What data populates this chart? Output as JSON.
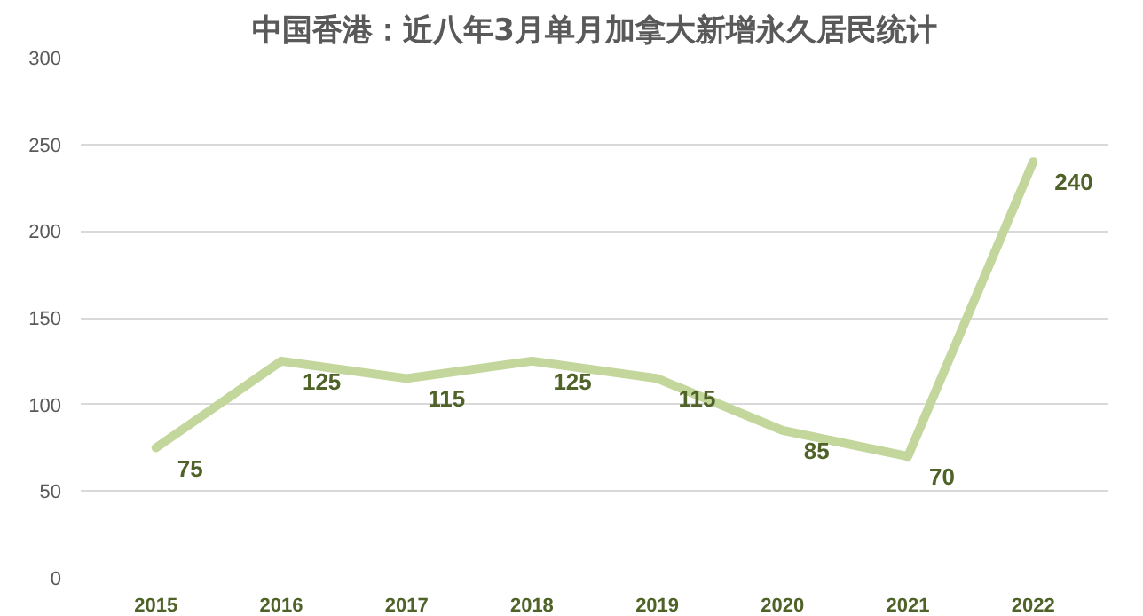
{
  "chart_data": {
    "type": "line",
    "title": "中国香港：近八年3月单月加拿大新增永久居民统计",
    "categories": [
      "2015",
      "2016",
      "2017",
      "2018",
      "2019",
      "2020",
      "2021",
      "2022"
    ],
    "series": [
      {
        "color": "#c3d69b",
        "values": [
          75,
          125,
          115,
          125,
          115,
          85,
          70,
          240
        ]
      }
    ],
    "ylim": [
      0,
      300
    ],
    "yticks": [
      0,
      50,
      100,
      150,
      200,
      250,
      300
    ],
    "grid": "y",
    "data_labels": true,
    "marker": "none",
    "line_style": "solid"
  }
}
